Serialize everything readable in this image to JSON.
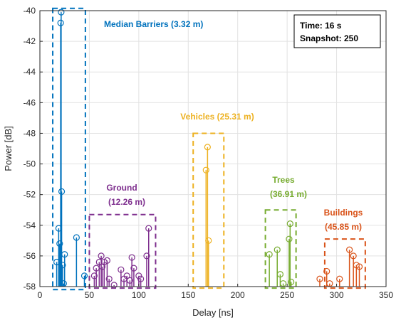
{
  "chart_data": {
    "type": "stem",
    "xlabel": "Delay [ns]",
    "ylabel": "Power [dB]",
    "xlim": [
      0,
      350
    ],
    "ylim": [
      -58,
      -40
    ],
    "xticks": [
      0,
      50,
      100,
      150,
      200,
      250,
      300,
      350
    ],
    "yticks": [
      -58,
      -56,
      -54,
      -52,
      -50,
      -48,
      -46,
      -44,
      -42,
      -40
    ],
    "grid": true,
    "info_box": {
      "time": "Time: 16 s",
      "snapshot": "Snapshot: 250",
      "position": "top-right"
    },
    "categories": [
      {
        "name": "Median Barriers",
        "distance": "(3.32 m)",
        "color": "#0072BD",
        "box": {
          "x": [
            13,
            46
          ],
          "y": [
            -58.2,
            -39.85
          ]
        },
        "x": [
          17,
          19,
          20,
          21,
          21.5,
          22,
          23,
          24,
          25,
          37,
          45
        ],
        "y": [
          -56.4,
          -54.2,
          -55.2,
          -40.8,
          -40.1,
          -51.8,
          -56.6,
          -57.8,
          -55.9,
          -54.8,
          -57.3
        ]
      },
      {
        "name": "Ground",
        "distance": "(12.26 m)",
        "color": "#7E2F8E",
        "box": {
          "x": [
            50,
            117
          ],
          "y": [
            -58.1,
            -53.3
          ]
        },
        "x": [
          55,
          57,
          60,
          62,
          63,
          65,
          68,
          70,
          75,
          82,
          85,
          88,
          91,
          93,
          95,
          100,
          102,
          108,
          110
        ],
        "y": [
          -57.3,
          -56.8,
          -56.4,
          -56.0,
          -56.7,
          -56.4,
          -56.3,
          -57.5,
          -57.9,
          -56.9,
          -57.5,
          -57.3,
          -57.6,
          -56.1,
          -56.8,
          -57.3,
          -57.5,
          -56.0,
          -54.2
        ]
      },
      {
        "name": "Vehicles",
        "distance": "(25.31 m)",
        "color": "#EDB120",
        "box": {
          "x": [
            155,
            186
          ],
          "y": [
            -58.1,
            -48.0
          ]
        },
        "x": [
          168,
          169.5,
          170.5
        ],
        "y": [
          -50.4,
          -48.9,
          -55.0
        ]
      },
      {
        "name": "Trees",
        "distance": "(36.91 m)",
        "color": "#77AC30",
        "box": {
          "x": [
            228,
            259
          ],
          "y": [
            -58.1,
            -53.0
          ]
        },
        "x": [
          232,
          240,
          243,
          246,
          252,
          253,
          254
        ],
        "y": [
          -55.9,
          -55.6,
          -57.2,
          -57.8,
          -54.9,
          -53.9,
          -57.7
        ]
      },
      {
        "name": "Buildings",
        "distance": "(45.85 m)",
        "color": "#D95319",
        "box": {
          "x": [
            288,
            329
          ],
          "y": [
            -58.1,
            -54.9
          ]
        },
        "x": [
          283,
          290,
          293,
          303,
          313,
          317,
          320,
          323
        ],
        "y": [
          -57.5,
          -57.0,
          -57.8,
          -57.5,
          -55.6,
          -56.0,
          -56.6,
          -56.7
        ]
      }
    ]
  }
}
